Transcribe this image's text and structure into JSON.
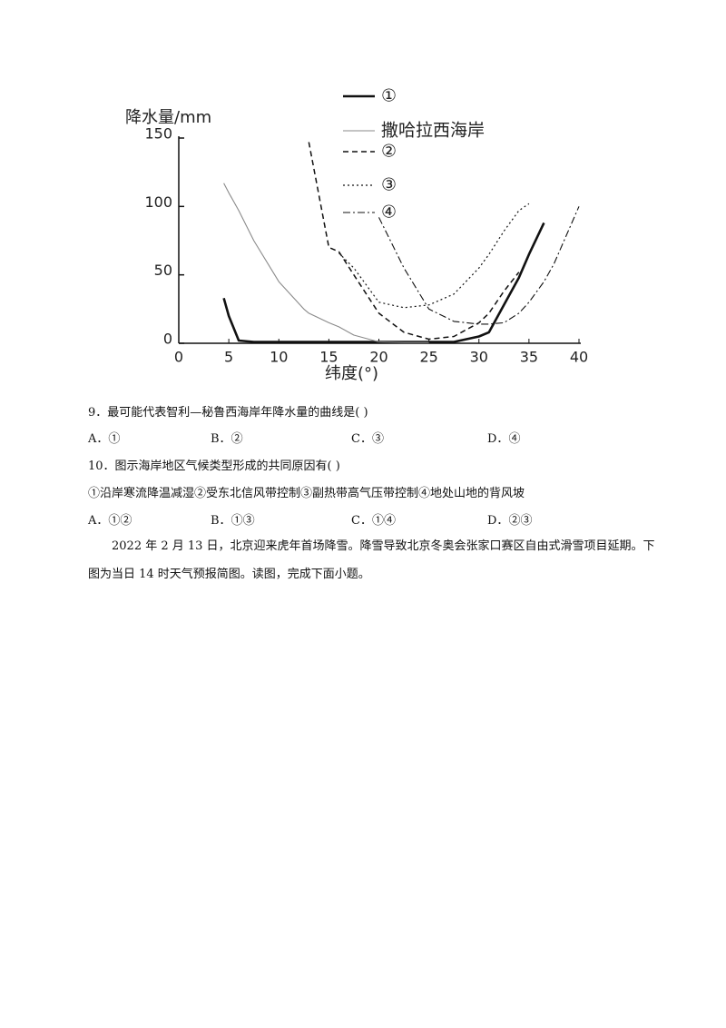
{
  "chart_data": {
    "type": "line",
    "y_label": "降水量/mm",
    "x_label": "纬度(°)",
    "x": [
      4.5,
      5,
      6,
      7.5,
      10,
      12.5,
      13,
      15,
      16,
      17.5,
      20,
      22.5,
      25,
      27.5,
      30,
      31,
      32.5,
      34,
      35,
      36.5,
      37.5,
      40
    ],
    "series": [
      {
        "name": "①",
        "color": "#111111",
        "line_style": "solid",
        "values": [
          33,
          20,
          2,
          1,
          1,
          1,
          1,
          1,
          1,
          1,
          1,
          1,
          1,
          1,
          5,
          8,
          28,
          48,
          65,
          88,
          null,
          null
        ]
      },
      {
        "name": "撒哈拉西海岸",
        "color": "#8a8a8a",
        "line_style": "thin",
        "values": [
          117,
          110,
          97,
          75,
          45,
          25,
          22,
          15,
          12,
          6,
          1,
          0.5,
          0.5,
          null,
          null,
          null,
          null,
          null,
          null,
          null,
          null,
          null
        ]
      },
      {
        "name": "②",
        "color": "#111111",
        "line_style": "dashed",
        "values": [
          null,
          null,
          null,
          null,
          null,
          null,
          147,
          70,
          67,
          50,
          22,
          8,
          3,
          5,
          15,
          22,
          38,
          52,
          null,
          null,
          null,
          null
        ]
      },
      {
        "name": "③",
        "color": "#111111",
        "line_style": "dotted",
        "values": [
          null,
          null,
          null,
          null,
          null,
          null,
          null,
          null,
          66,
          55,
          30,
          26,
          28,
          36,
          55,
          65,
          82,
          97,
          102,
          null,
          null,
          null
        ]
      },
      {
        "name": "④",
        "color": "#111111",
        "line_style": "dashdot",
        "values": [
          null,
          null,
          null,
          null,
          null,
          null,
          null,
          null,
          null,
          null,
          92,
          55,
          25,
          16,
          14,
          14,
          15,
          22,
          30,
          45,
          58,
          100
        ]
      }
    ],
    "xlim": [
      0,
      40
    ],
    "xticks": [
      0,
      5,
      10,
      15,
      20,
      25,
      30,
      35,
      40
    ],
    "ylim": [
      0,
      150
    ],
    "yticks": [
      0,
      50,
      100,
      150
    ]
  },
  "questions": [
    {
      "number": "9．",
      "text": "最可能代表智利—秘鲁西海岸年降水量的曲线是(    )",
      "options": [
        {
          "letter": "A．",
          "text": "①"
        },
        {
          "letter": "B．",
          "text": "②"
        },
        {
          "letter": "C．",
          "text": "③"
        },
        {
          "letter": "D．",
          "text": "④"
        }
      ]
    },
    {
      "number": "10．",
      "text": "图示海岸地区气候类型形成的共同原因有(    )",
      "statement": "①沿岸寒流降温减湿②受东北信风带控制③副热带高气压带控制④地处山地的背风坡",
      "options": [
        {
          "letter": "A．",
          "text": "①②"
        },
        {
          "letter": "B．",
          "text": "①③"
        },
        {
          "letter": "C．",
          "text": "①④"
        },
        {
          "letter": "D．",
          "text": "②③"
        }
      ]
    }
  ],
  "passage": "2022 年 2 月 13 日，北京迎来虎年首场降雪。降雪导致北京冬奥会张家口赛区自由式滑雪项目延期。下图为当日 14 时天气预报简图。读图，完成下面小题。"
}
